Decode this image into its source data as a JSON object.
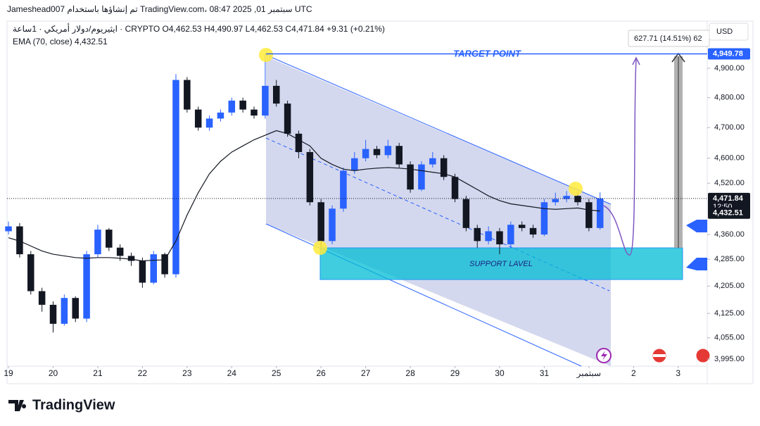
{
  "chart_data": {
    "type": "candlestick",
    "attribution": "Jameshead007 تم إنشاؤها باستخدام TradingView.com، 08:47 2025 ,01 سبتمبر UTC",
    "symbol": "ايثيريوم/دولار أمريكي · 1ساعة · CRYPTO",
    "ohlc": [
      "O4,462.53",
      "H4,490.97",
      "L4,462.53",
      "C4,471.84",
      "+9.31 (+0.21%)"
    ],
    "currency": "USD",
    "countdown": "12:50",
    "annotations": {
      "target": "TARGET POINT",
      "support": "SUPPORT LAVEL",
      "measure": "627.71 (14.51%) 62"
    },
    "logo": "TradingView",
    "log": true,
    "grid": false,
    "ylim": [
      3975,
      5065
    ],
    "yticks": [
      {
        "value": 3995,
        "label": "3,995.00"
      },
      {
        "value": 4055,
        "label": "4,055.00"
      },
      {
        "value": 4125,
        "label": "4,125.00"
      },
      {
        "value": 4205,
        "label": "4,205.00"
      },
      {
        "value": 4285,
        "label": "4,285.00"
      },
      {
        "value": 4360,
        "label": "4,360.00"
      },
      {
        "value": 4520,
        "label": "4,520.00"
      },
      {
        "value": 4600,
        "label": "4,600.00"
      },
      {
        "value": 4700,
        "label": "4,700.00"
      },
      {
        "value": 4800,
        "label": "4,800.00"
      },
      {
        "value": 4900,
        "label": "4,900.00"
      }
    ],
    "xlim": [
      -0.13,
      62.6
    ],
    "xticks": [
      {
        "value": 0,
        "label": "19"
      },
      {
        "value": 4,
        "label": "20"
      },
      {
        "value": 8,
        "label": "21"
      },
      {
        "value": 12,
        "label": "22"
      },
      {
        "value": 16,
        "label": "23"
      },
      {
        "value": 20,
        "label": "24"
      },
      {
        "value": 24,
        "label": "25"
      },
      {
        "value": 28,
        "label": "26"
      },
      {
        "value": 32,
        "label": "27"
      },
      {
        "value": 36,
        "label": "28"
      },
      {
        "value": 40,
        "label": "29"
      },
      {
        "value": 44,
        "label": "30"
      },
      {
        "value": 48,
        "label": "31"
      },
      {
        "value": 52,
        "label": "سبتمبر"
      },
      {
        "value": 56,
        "label": "2"
      },
      {
        "value": 60,
        "label": "3"
      }
    ],
    "up_color": "#2962ff",
    "down_color": "#131722",
    "open": [
      4370,
      4385,
      4300,
      4190,
      4150,
      4095,
      4170,
      4110,
      4300,
      4375,
      4320,
      4295,
      4280,
      4215,
      4300,
      4240,
      4860,
      4760,
      4700,
      4730,
      4750,
      4790,
      4760,
      4740,
      4840,
      4780,
      4680,
      4620,
      4460,
      4340,
      4440,
      4560,
      4600,
      4630,
      4610,
      4640,
      4580,
      4500,
      4580,
      4600,
      4540,
      4470,
      4380,
      4340,
      4370,
      4330,
      4390,
      4380,
      4360,
      4460,
      4470,
      4480,
      4460,
      4380
    ],
    "high": [
      4400,
      4395,
      4310,
      4200,
      4160,
      4180,
      4175,
      4310,
      4390,
      4380,
      4330,
      4305,
      4290,
      4310,
      4305,
      4880,
      4870,
      4770,
      4740,
      4760,
      4800,
      4800,
      4770,
      4950,
      4860,
      4790,
      4690,
      4630,
      4470,
      4450,
      4570,
      4620,
      4660,
      4640,
      4660,
      4650,
      4590,
      4590,
      4620,
      4610,
      4550,
      4480,
      4390,
      4385,
      4380,
      4400,
      4400,
      4390,
      4470,
      4490,
      4495,
      4490,
      4470,
      4491
    ],
    "low": [
      4360,
      4290,
      4180,
      4130,
      4070,
      4090,
      4100,
      4100,
      4290,
      4310,
      4280,
      4265,
      4200,
      4210,
      4230,
      4230,
      4750,
      4690,
      4690,
      4720,
      4740,
      4750,
      4730,
      4730,
      4770,
      4670,
      4600,
      4450,
      4320,
      4330,
      4430,
      4550,
      4590,
      4600,
      4600,
      4570,
      4490,
      4495,
      4570,
      4530,
      4460,
      4370,
      4320,
      4330,
      4300,
      4320,
      4370,
      4350,
      4355,
      4450,
      4460,
      4450,
      4370,
      4375
    ],
    "close": [
      4385,
      4300,
      4190,
      4150,
      4095,
      4170,
      4110,
      4300,
      4375,
      4320,
      4295,
      4280,
      4215,
      4300,
      4240,
      4860,
      4760,
      4700,
      4730,
      4750,
      4790,
      4760,
      4740,
      4840,
      4780,
      4680,
      4620,
      4460,
      4340,
      4440,
      4560,
      4600,
      4630,
      4610,
      4640,
      4580,
      4500,
      4580,
      4600,
      4540,
      4470,
      4380,
      4340,
      4370,
      4330,
      4390,
      4380,
      4360,
      4460,
      4470,
      4480,
      4460,
      4380,
      4472
    ],
    "ema": {
      "name": "EMA (70, close)",
      "color": "#131722",
      "values": [
        4350,
        4340,
        4325,
        4310,
        4300,
        4295,
        4290,
        4288,
        4290,
        4290,
        4288,
        4285,
        4280,
        4282,
        4283,
        4340,
        4420,
        4490,
        4550,
        4590,
        4620,
        4640,
        4660,
        4675,
        4690,
        4680,
        4660,
        4640,
        4600,
        4580,
        4565,
        4560,
        4565,
        4568,
        4570,
        4568,
        4565,
        4560,
        4555,
        4550,
        4540,
        4520,
        4500,
        4480,
        4465,
        4455,
        4450,
        4445,
        4440,
        4438,
        4440,
        4442,
        4436,
        4432.51
      ]
    },
    "price_labels": [
      {
        "value": 4949.78,
        "label": "4,949.78",
        "color": "#2962ff"
      },
      {
        "value": 4471.84,
        "label": "4,471.84",
        "color": "#131722"
      },
      {
        "value": 4432.51,
        "label": "4,432.51",
        "color": "#131722"
      }
    ]
  }
}
